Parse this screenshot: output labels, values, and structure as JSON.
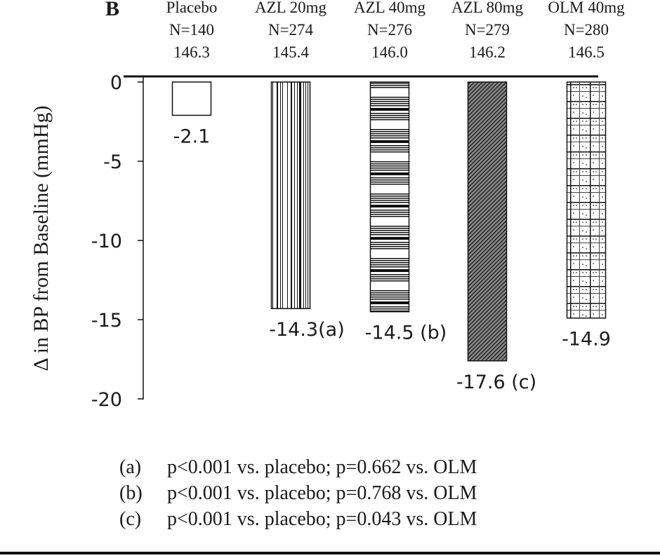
{
  "chart_data": {
    "type": "bar",
    "panel_label": "B",
    "ylabel": "Δ in BP from Baseline (mmHg)",
    "ylim": [
      -20,
      0
    ],
    "yticks": [
      0,
      -5,
      -10,
      -15,
      -20
    ],
    "ytick_labels": [
      "0",
      "-5",
      "-10",
      "-15",
      "-20"
    ],
    "categories": [
      "Placebo",
      "AZL 20mg",
      "AZL 40mg",
      "AZL 80mg",
      "OLM 40mg"
    ],
    "n_labels": [
      "N=140",
      "N=274",
      "N=276",
      "N=279",
      "N=280"
    ],
    "baselines": [
      "146.3",
      "145.4",
      "146.0",
      "146.2",
      "146.5"
    ],
    "values": [
      -2.1,
      -14.3,
      -14.5,
      -17.6,
      -14.9
    ],
    "value_labels": [
      "-2.1",
      "-14.3(a)",
      "-14.5 (b)",
      "-17.6 (c)",
      "-14.9"
    ],
    "patterns": [
      "blank",
      "vertical-stripes",
      "horizontal-stripes",
      "diagonal-hatch",
      "grid-dots"
    ]
  },
  "footnotes": [
    {
      "key": "(a)",
      "text": "p<0.001 vs. placebo; p=0.662 vs. OLM"
    },
    {
      "key": "(b)",
      "text": "p<0.001 vs. placebo; p=0.768 vs. OLM"
    },
    {
      "key": "(c)",
      "text": "p<0.001 vs. placebo; p=0.043 vs. OLM"
    }
  ]
}
